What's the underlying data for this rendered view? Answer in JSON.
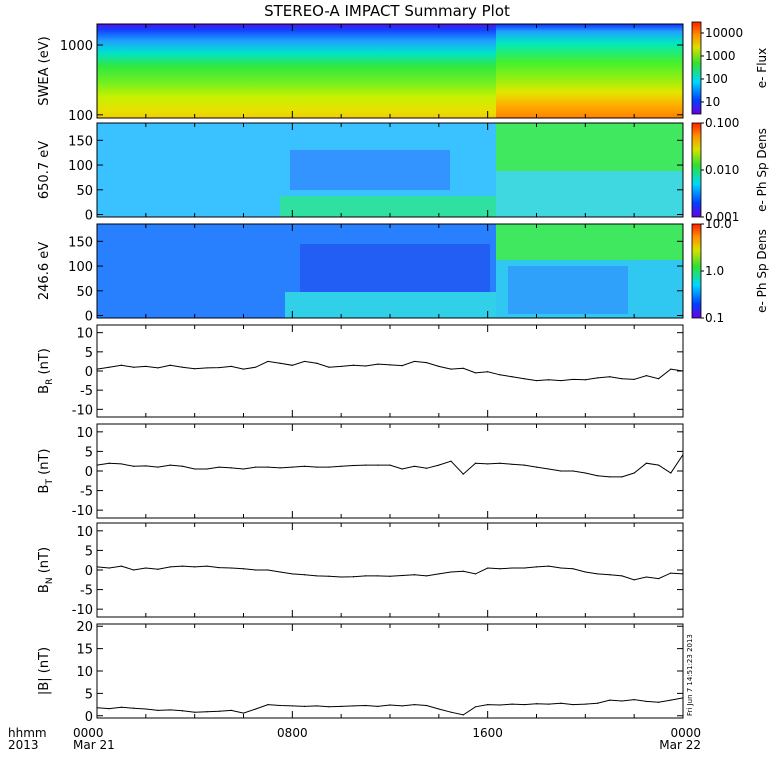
{
  "title": "STEREO-A IMPACT Summary Plot",
  "timestamp": "Fri Jun  7 14:51:23 2013",
  "time_axis": {
    "row1_label": "hhmm",
    "row2_label": "2013",
    "ticks": [
      {
        "hours": 0,
        "label": "0000",
        "date": "Mar 21"
      },
      {
        "hours": 8,
        "label": "0800",
        "date": ""
      },
      {
        "hours": 16,
        "label": "1600",
        "date": ""
      },
      {
        "hours": 24,
        "label": "0000",
        "date": "Mar 22"
      }
    ]
  },
  "chart_data": [
    {
      "type": "heatmap",
      "id": "swea",
      "ylabel": "SWEA (eV)",
      "ytick_labels": [
        "1000",
        "100"
      ],
      "ytick_values": [
        1000,
        100
      ],
      "ylim": [
        90,
        2000
      ],
      "y_scale": "log",
      "colorbar": {
        "label": "e- Flux",
        "tick_labels": [
          "10000",
          "1000",
          "100",
          "10"
        ],
        "tick_values": [
          10000,
          1000,
          100,
          10
        ],
        "range": [
          3,
          30000
        ],
        "scale": "log"
      }
    },
    {
      "type": "heatmap",
      "id": "pad650",
      "ylabel": "650.7 eV",
      "ytick_labels": [
        "150",
        "100",
        "50",
        "0"
      ],
      "ytick_values": [
        150,
        100,
        50,
        0
      ],
      "ylim": [
        -5,
        185
      ],
      "colorbar": {
        "label": "e- Ph Sp Dens",
        "tick_labels": [
          "0.100",
          "0.010",
          "0.001"
        ],
        "tick_values": [
          0.1,
          0.01,
          0.001
        ],
        "range": [
          0.001,
          0.1
        ],
        "scale": "log"
      }
    },
    {
      "type": "heatmap",
      "id": "pad246",
      "ylabel": "246.6 eV",
      "ytick_labels": [
        "150",
        "100",
        "50",
        "0"
      ],
      "ytick_values": [
        150,
        100,
        50,
        0
      ],
      "ylim": [
        -5,
        185
      ],
      "colorbar": {
        "label": "e- Ph Sp Dens",
        "tick_labels": [
          "10.0",
          "1.0",
          "0.1"
        ],
        "tick_values": [
          10,
          1,
          0.1
        ],
        "range": [
          0.1,
          10
        ],
        "scale": "log"
      }
    },
    {
      "type": "line",
      "id": "br",
      "ylabel": "B",
      "ylabel_sub": "R",
      "ylabel_unit": " (nT)",
      "ylim": [
        -12,
        12
      ],
      "ytick_labels": [
        "10",
        "5",
        "0",
        "-5",
        "-10"
      ],
      "ytick_values": [
        10,
        5,
        0,
        -5,
        -10
      ],
      "x": [
        0,
        0.5,
        1,
        1.5,
        2,
        2.5,
        3,
        3.5,
        4,
        4.5,
        5,
        5.5,
        6,
        6.5,
        7,
        7.5,
        8,
        8.5,
        9,
        9.5,
        10,
        10.5,
        11,
        11.5,
        12,
        12.5,
        13,
        13.5,
        14,
        14.5,
        15,
        15.5,
        16,
        16.5,
        17,
        17.5,
        18,
        18.5,
        19,
        19.5,
        20,
        20.5,
        21,
        21.5,
        22,
        22.5,
        23,
        23.5,
        24
      ],
      "values": [
        0.5,
        1,
        1.5,
        1,
        1.2,
        0.8,
        1.5,
        1,
        0.6,
        0.8,
        0.9,
        1.2,
        0.5,
        1,
        2.5,
        2,
        1.5,
        2.5,
        2,
        1,
        1.2,
        1.5,
        1.3,
        1.8,
        1.6,
        1.4,
        2.5,
        2.2,
        1.2,
        0.5,
        0.7,
        -0.5,
        -0.2,
        -1,
        -1.5,
        -2,
        -2.5,
        -2.3,
        -2.5,
        -2.2,
        -2.3,
        -1.8,
        -1.5,
        -2,
        -2.2,
        -1.2,
        -2,
        0.5,
        0
      ]
    },
    {
      "type": "line",
      "id": "bt",
      "ylabel": "B",
      "ylabel_sub": "T",
      "ylabel_unit": " (nT)",
      "ylim": [
        -12,
        12
      ],
      "ytick_labels": [
        "10",
        "5",
        "0",
        "-5",
        "-10"
      ],
      "ytick_values": [
        10,
        5,
        0,
        -5,
        -10
      ],
      "x": [
        0,
        0.5,
        1,
        1.5,
        2,
        2.5,
        3,
        3.5,
        4,
        4.5,
        5,
        5.5,
        6,
        6.5,
        7,
        7.5,
        8,
        8.5,
        9,
        9.5,
        10,
        10.5,
        11,
        11.5,
        12,
        12.5,
        13,
        13.5,
        14,
        14.5,
        15,
        15.5,
        16,
        16.5,
        17,
        17.5,
        18,
        18.5,
        19,
        19.5,
        20,
        20.5,
        21,
        21.5,
        22,
        22.5,
        23,
        23.5,
        24
      ],
      "values": [
        1.5,
        2,
        1.8,
        1.2,
        1.3,
        1,
        1.5,
        1.2,
        0.5,
        0.5,
        1,
        0.8,
        0.5,
        1,
        1,
        0.8,
        1,
        1.2,
        1,
        1,
        1.2,
        1.4,
        1.5,
        1.5,
        1.5,
        0.5,
        1.2,
        0.7,
        1.5,
        2.5,
        -0.8,
        2,
        1.8,
        2,
        1.7,
        1.5,
        1,
        0.5,
        0,
        0,
        -0.5,
        -1.2,
        -1.5,
        -1.5,
        -0.5,
        2,
        1.5,
        -0.5,
        4.2
      ]
    },
    {
      "type": "line",
      "id": "bn",
      "ylabel": "B",
      "ylabel_sub": "N",
      "ylabel_unit": " (nT)",
      "ylim": [
        -12,
        12
      ],
      "ytick_labels": [
        "10",
        "5",
        "0",
        "-5",
        "-10"
      ],
      "ytick_values": [
        10,
        5,
        0,
        -5,
        -10
      ],
      "x": [
        0,
        0.5,
        1,
        1.5,
        2,
        2.5,
        3,
        3.5,
        4,
        4.5,
        5,
        5.5,
        6,
        6.5,
        7,
        7.5,
        8,
        8.5,
        9,
        9.5,
        10,
        10.5,
        11,
        11.5,
        12,
        12.5,
        13,
        13.5,
        14,
        14.5,
        15,
        15.5,
        16,
        16.5,
        17,
        17.5,
        18,
        18.5,
        19,
        19.5,
        20,
        20.5,
        21,
        21.5,
        22,
        22.5,
        23,
        23.5,
        24
      ],
      "values": [
        0.8,
        0.5,
        1,
        0,
        0.5,
        0.2,
        0.8,
        1,
        0.8,
        1,
        0.6,
        0.5,
        0.3,
        0,
        0,
        -0.5,
        -1,
        -1.2,
        -1.5,
        -1.6,
        -1.8,
        -1.7,
        -1.5,
        -1.5,
        -1.6,
        -1.4,
        -1.2,
        -1.5,
        -1,
        -0.5,
        -0.3,
        -1,
        0.5,
        0.3,
        0.5,
        0.5,
        0.8,
        1,
        0.5,
        0.3,
        -0.5,
        -1,
        -1.2,
        -1.5,
        -2.5,
        -1.8,
        -2.2,
        -0.8,
        -1
      ]
    },
    {
      "type": "line",
      "id": "bmag",
      "ylabel": "|B| (nT)",
      "ylim": [
        -0.5,
        20.5
      ],
      "ytick_labels": [
        "20",
        "15",
        "10",
        "5",
        "0"
      ],
      "ytick_values": [
        20,
        15,
        10,
        5,
        0
      ],
      "x": [
        0,
        0.5,
        1,
        1.5,
        2,
        2.5,
        3,
        3.5,
        4,
        4.5,
        5,
        5.5,
        6,
        6.5,
        7,
        7.5,
        8,
        8.5,
        9,
        9.5,
        10,
        10.5,
        11,
        11.5,
        12,
        12.5,
        13,
        13.5,
        14,
        14.5,
        15,
        15.5,
        16,
        16.5,
        17,
        17.5,
        18,
        18.5,
        19,
        19.5,
        20,
        20.5,
        21,
        21.5,
        22,
        22.5,
        23,
        23.5,
        24
      ],
      "values": [
        1.8,
        1.6,
        1.9,
        1.7,
        1.5,
        1.2,
        1.3,
        1.1,
        0.8,
        0.9,
        1,
        1.2,
        0.6,
        1.5,
        2.5,
        2.3,
        2.2,
        2.1,
        2.2,
        2,
        2.1,
        2.2,
        2.3,
        2.1,
        2.4,
        2.2,
        2.5,
        2.3,
        1.5,
        0.8,
        0.2,
        2,
        2.5,
        2.4,
        2.6,
        2.5,
        2.7,
        2.6,
        2.8,
        2.5,
        2.6,
        2.8,
        3.5,
        3.3,
        3.6,
        3.2,
        3,
        3.5,
        4
      ]
    }
  ]
}
